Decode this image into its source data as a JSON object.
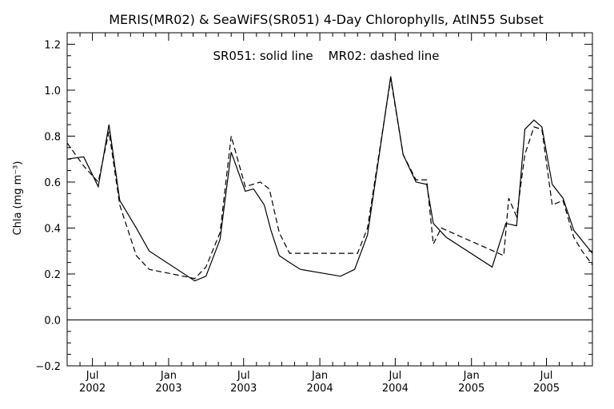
{
  "chart_data": {
    "type": "line",
    "title": "MERIS(MR02) & SeaWiFS(SR051) 4-Day Chlorophylls, AtlN55 Subset",
    "annotation": "SR051: solid line    MR02: dashed line",
    "ylabel": "Chla (mg m⁻³)",
    "ylim": [
      -0.2,
      1.25
    ],
    "xlim": [
      "2002-05-01",
      "2005-10-20"
    ],
    "yticks": [
      "−0.2",
      "0.0",
      "0.2",
      "0.4",
      "0.6",
      "0.8",
      "1.0",
      "1.2"
    ],
    "ytick_values": [
      -0.2,
      0.0,
      0.2,
      0.4,
      0.6,
      0.8,
      1.0,
      1.2
    ],
    "xticks": [
      {
        "date": "2002-07-01",
        "month": "Jul",
        "year": "2002"
      },
      {
        "date": "2003-01-01",
        "month": "Jan",
        "year": "2003"
      },
      {
        "date": "2003-07-01",
        "month": "Jul",
        "year": "2003"
      },
      {
        "date": "2004-01-01",
        "month": "Jan",
        "year": "2004"
      },
      {
        "date": "2004-07-01",
        "month": "Jul",
        "year": "2004"
      },
      {
        "date": "2005-01-01",
        "month": "Jan",
        "year": "2005"
      },
      {
        "date": "2005-07-01",
        "month": "Jul",
        "year": "2005"
      }
    ],
    "zero_line": 0.0,
    "series": [
      {
        "name": "SR051",
        "style": "solid",
        "color": "#000000",
        "x": [
          "2002-05-01",
          "2002-06-10",
          "2002-07-15",
          "2002-08-10",
          "2002-09-05",
          "2002-10-15",
          "2002-11-15",
          "2003-03-05",
          "2003-04-01",
          "2003-05-05",
          "2003-06-01",
          "2003-07-05",
          "2003-07-25",
          "2003-08-20",
          "2003-09-05",
          "2003-09-25",
          "2003-10-20",
          "2003-11-15",
          "2004-02-20",
          "2004-03-25",
          "2004-04-25",
          "2004-06-20",
          "2004-07-20",
          "2004-08-20",
          "2004-09-15",
          "2004-10-01",
          "2004-11-01",
          "2005-02-20",
          "2005-03-25",
          "2005-04-20",
          "2005-05-10",
          "2005-06-01",
          "2005-06-20",
          "2005-07-15",
          "2005-08-10",
          "2005-09-05",
          "2005-10-20"
        ],
        "y": [
          0.7,
          0.71,
          0.58,
          0.85,
          0.52,
          0.4,
          0.3,
          0.17,
          0.19,
          0.35,
          0.73,
          0.56,
          0.57,
          0.5,
          0.39,
          0.28,
          0.25,
          0.22,
          0.19,
          0.22,
          0.37,
          1.06,
          0.72,
          0.6,
          0.59,
          0.42,
          0.36,
          0.23,
          0.42,
          0.41,
          0.83,
          0.87,
          0.84,
          0.59,
          0.53,
          0.39,
          0.29
        ]
      },
      {
        "name": "MR02",
        "style": "dashed",
        "color": "#000000",
        "x": [
          "2002-05-01",
          "2002-06-10",
          "2002-07-15",
          "2002-08-10",
          "2002-09-05",
          "2002-10-15",
          "2002-11-15",
          "2003-03-05",
          "2003-04-01",
          "2003-05-05",
          "2003-06-01",
          "2003-07-05",
          "2003-08-10",
          "2003-09-01",
          "2003-09-25",
          "2003-10-20",
          "2004-04-01",
          "2004-04-25",
          "2004-06-20",
          "2004-07-20",
          "2004-08-20",
          "2004-09-15",
          "2004-10-01",
          "2004-10-20",
          "2005-03-20",
          "2005-04-01",
          "2005-04-20",
          "2005-05-10",
          "2005-06-01",
          "2005-06-20",
          "2005-07-15",
          "2005-08-10",
          "2005-09-05",
          "2005-09-25",
          "2005-10-20"
        ],
        "y": [
          0.77,
          0.67,
          0.6,
          0.82,
          0.5,
          0.28,
          0.22,
          0.18,
          0.23,
          0.38,
          0.8,
          0.58,
          0.6,
          0.57,
          0.38,
          0.29,
          0.29,
          0.4,
          1.05,
          0.72,
          0.61,
          0.61,
          0.33,
          0.4,
          0.28,
          0.53,
          0.45,
          0.72,
          0.84,
          0.83,
          0.5,
          0.52,
          0.36,
          0.3,
          0.24
        ]
      }
    ]
  }
}
